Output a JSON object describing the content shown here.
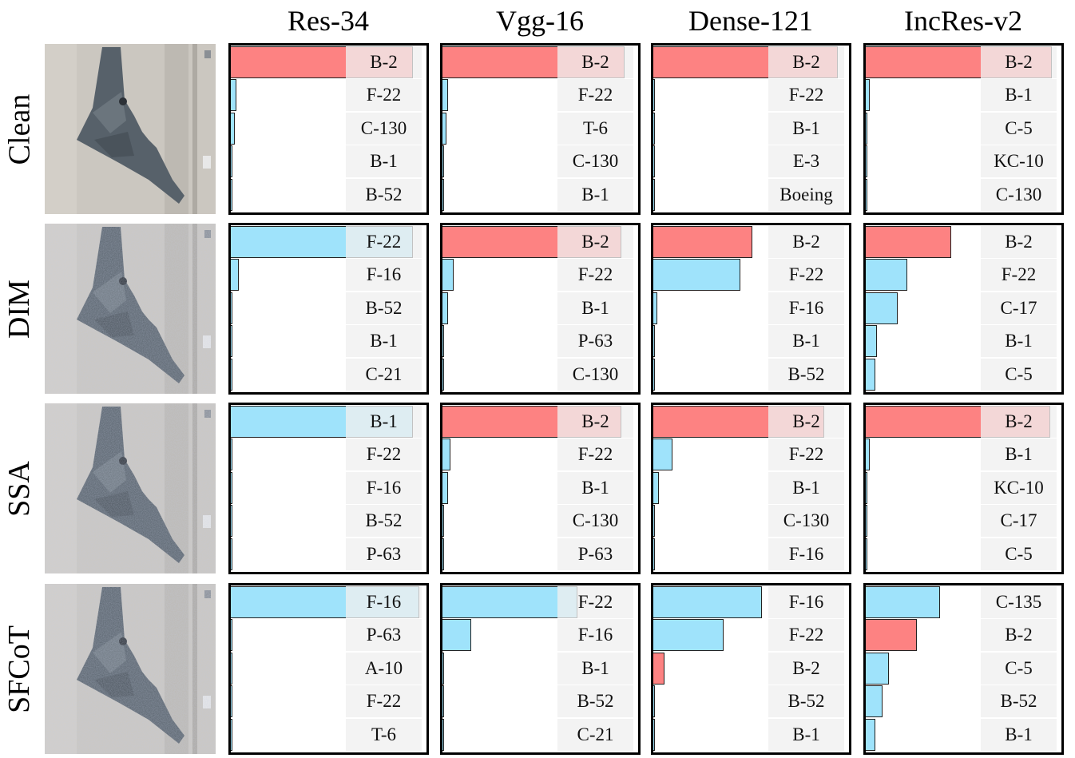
{
  "models": [
    "Res-34",
    "Vgg-16",
    "Dense-121",
    "IncRes-v2"
  ],
  "methods": [
    "Clean",
    "DIM",
    "SSA",
    "SFCoT"
  ],
  "colors": {
    "true_class": "#fd8282",
    "other_class": "#9fe3fb",
    "label_box": "#f0f0f0"
  },
  "chart_data": [
    {
      "type": "bar",
      "method": "Clean",
      "model": "Res-34",
      "categories": [
        "B-2",
        "F-22",
        "C-130",
        "B-1",
        "B-52"
      ],
      "values": [
        0.96,
        0.03,
        0.02,
        0.005,
        0.005
      ],
      "true_class": "B-2"
    },
    {
      "type": "bar",
      "method": "Clean",
      "model": "Vgg-16",
      "categories": [
        "B-2",
        "F-22",
        "T-6",
        "C-130",
        "B-1"
      ],
      "values": [
        0.96,
        0.03,
        0.02,
        0.01,
        0.005
      ],
      "true_class": "B-2"
    },
    {
      "type": "bar",
      "method": "Clean",
      "model": "Dense-121",
      "categories": [
        "B-2",
        "F-22",
        "B-1",
        "E-3",
        "Boeing"
      ],
      "values": [
        0.97,
        0.01,
        0.005,
        0.005,
        0.005
      ],
      "true_class": "B-2"
    },
    {
      "type": "bar",
      "method": "Clean",
      "model": "IncRes-v2",
      "categories": [
        "B-2",
        "B-1",
        "C-5",
        "KC-10",
        "C-130"
      ],
      "values": [
        0.98,
        0.02,
        0.005,
        0.005,
        0.005
      ],
      "true_class": "B-2"
    },
    {
      "type": "bar",
      "method": "DIM",
      "model": "Res-34",
      "categories": [
        "F-22",
        "F-16",
        "B-52",
        "B-1",
        "C-21"
      ],
      "values": [
        0.96,
        0.04,
        0.005,
        0.005,
        0.005
      ],
      "true_class": "B-2"
    },
    {
      "type": "bar",
      "method": "DIM",
      "model": "Vgg-16",
      "categories": [
        "B-2",
        "F-22",
        "B-1",
        "P-63",
        "C-130"
      ],
      "values": [
        0.94,
        0.06,
        0.03,
        0.005,
        0.005
      ],
      "true_class": "B-2"
    },
    {
      "type": "bar",
      "method": "DIM",
      "model": "Dense-121",
      "categories": [
        "B-2",
        "F-22",
        "F-16",
        "B-1",
        "B-52"
      ],
      "values": [
        0.52,
        0.46,
        0.02,
        0.005,
        0.005
      ],
      "true_class": "B-2"
    },
    {
      "type": "bar",
      "method": "DIM",
      "model": "IncRes-v2",
      "categories": [
        "B-2",
        "F-22",
        "C-17",
        "B-1",
        "C-5"
      ],
      "values": [
        0.45,
        0.22,
        0.17,
        0.06,
        0.05
      ],
      "true_class": "B-2"
    },
    {
      "type": "bar",
      "method": "SSA",
      "model": "Res-34",
      "categories": [
        "B-1",
        "F-22",
        "F-16",
        "B-52",
        "P-63"
      ],
      "values": [
        0.96,
        0.01,
        0.01,
        0.005,
        0.005
      ],
      "true_class": "B-2"
    },
    {
      "type": "bar",
      "method": "SSA",
      "model": "Vgg-16",
      "categories": [
        "B-2",
        "F-22",
        "B-1",
        "C-130",
        "P-63"
      ],
      "values": [
        0.94,
        0.04,
        0.03,
        0.01,
        0.005
      ],
      "true_class": "B-2"
    },
    {
      "type": "bar",
      "method": "SSA",
      "model": "Dense-121",
      "categories": [
        "B-2",
        "F-22",
        "B-1",
        "C-130",
        "F-16"
      ],
      "values": [
        0.9,
        0.1,
        0.03,
        0.005,
        0.005
      ],
      "true_class": "B-2"
    },
    {
      "type": "bar",
      "method": "SSA",
      "model": "IncRes-v2",
      "categories": [
        "B-2",
        "B-1",
        "KC-10",
        "C-17",
        "C-5"
      ],
      "values": [
        0.97,
        0.02,
        0.005,
        0.005,
        0.005
      ],
      "true_class": "B-2"
    },
    {
      "type": "bar",
      "method": "SFCoT",
      "model": "Res-34",
      "categories": [
        "F-16",
        "P-63",
        "A-10",
        "F-22",
        "T-6"
      ],
      "values": [
        0.99,
        0.005,
        0.005,
        0.005,
        0.005
      ],
      "true_class": "B-2"
    },
    {
      "type": "bar",
      "method": "SFCoT",
      "model": "Vgg-16",
      "categories": [
        "F-22",
        "F-16",
        "B-1",
        "B-52",
        "C-21"
      ],
      "values": [
        0.71,
        0.15,
        0.005,
        0.005,
        0.005
      ],
      "true_class": "B-2"
    },
    {
      "type": "bar",
      "method": "SFCoT",
      "model": "Dense-121",
      "categories": [
        "F-16",
        "F-22",
        "B-2",
        "B-52",
        "B-1"
      ],
      "values": [
        0.57,
        0.37,
        0.06,
        0.005,
        0.005
      ],
      "true_class": "B-2"
    },
    {
      "type": "bar",
      "method": "SFCoT",
      "model": "IncRes-v2",
      "categories": [
        "C-135",
        "B-2",
        "C-5",
        "B-52",
        "B-1"
      ],
      "values": [
        0.39,
        0.27,
        0.12,
        0.09,
        0.05
      ],
      "true_class": "B-2"
    }
  ]
}
